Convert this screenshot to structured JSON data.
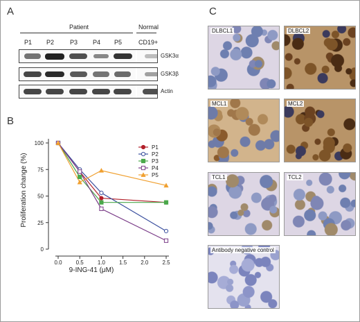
{
  "panel_letters": {
    "a": "A",
    "b": "B",
    "c": "C"
  },
  "blot": {
    "group_patient": "Patient",
    "group_normal": "Normal",
    "lanes": [
      "P1",
      "P2",
      "P3",
      "P4",
      "P5",
      "CD19+"
    ],
    "rows": [
      {
        "label": "GSK3α",
        "intensity": [
          0.55,
          1.0,
          0.75,
          0.45,
          0.9,
          0.15
        ]
      },
      {
        "label": "GSK3β",
        "intensity": [
          0.8,
          0.95,
          0.7,
          0.55,
          0.6,
          0.3
        ]
      },
      {
        "label": "Actin",
        "intensity": [
          0.8,
          0.8,
          0.8,
          0.8,
          0.8,
          0.75
        ]
      }
    ]
  },
  "chart_data": {
    "type": "line",
    "x": [
      0.0,
      0.5,
      1.0,
      2.5
    ],
    "xlabel": "9-ING-41 (μM)",
    "ylabel": "Proliferation change (%)",
    "xlim": [
      0,
      2.5
    ],
    "ylim": [
      0,
      100
    ],
    "xticks": [
      "0.0",
      "0.5",
      "1.0",
      "1.5",
      "2.0",
      "2.5"
    ],
    "yticks": [
      "0",
      "25",
      "50",
      "75",
      "100"
    ],
    "legend_position": "top-right",
    "series": [
      {
        "name": "P1",
        "values": [
          100,
          73,
          48,
          44
        ],
        "color": "#b2202a",
        "marker": "circle-filled"
      },
      {
        "name": "P2",
        "values": [
          100,
          75,
          53,
          17
        ],
        "color": "#3a4f9e",
        "marker": "circle-open"
      },
      {
        "name": "P3",
        "values": [
          100,
          68,
          44,
          44
        ],
        "color": "#4aa84a",
        "marker": "square-filled"
      },
      {
        "name": "P4",
        "values": [
          100,
          73,
          38,
          8
        ],
        "color": "#7a3c88",
        "marker": "square-open"
      },
      {
        "name": "P5",
        "values": [
          100,
          63,
          74,
          60
        ],
        "color": "#f0a030",
        "marker": "triangle-filled"
      }
    ]
  },
  "ihc": {
    "tiles": [
      {
        "label": "DLBCL1",
        "stain": "light"
      },
      {
        "label": "DLBCL2",
        "stain": "dark"
      },
      {
        "label": "MCL1",
        "stain": "medium"
      },
      {
        "label": "MCL2",
        "stain": "dark"
      },
      {
        "label": "TCL1",
        "stain": "light"
      },
      {
        "label": "TCL2",
        "stain": "light"
      },
      {
        "label": "Antibody negative control",
        "stain": "negative"
      }
    ]
  }
}
